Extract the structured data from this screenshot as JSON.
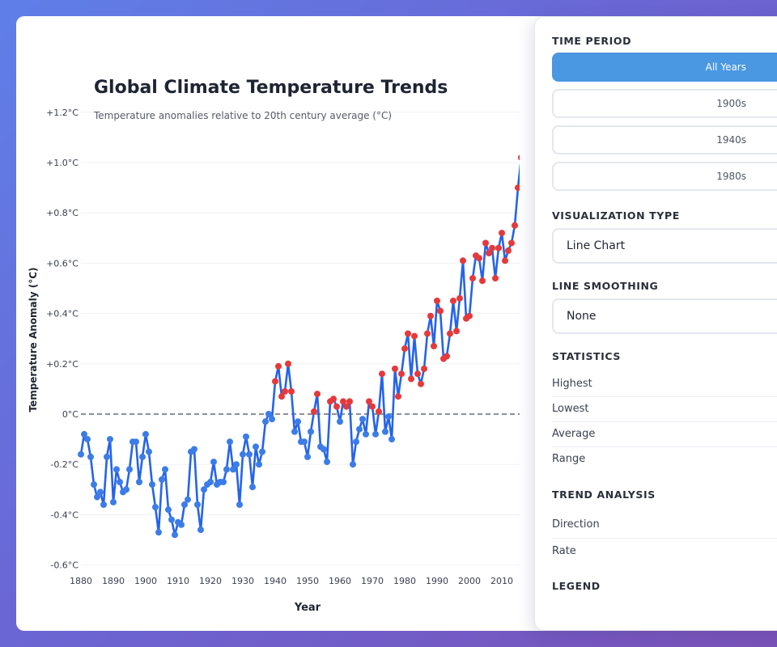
{
  "chart_data": {
    "type": "line",
    "title": "Global Climate Temperature Trends",
    "subtitle": "Temperature anomalies relative to 20th century average (°C)",
    "xlabel": "Year",
    "ylabel": "Temperature Anomaly (°C)",
    "ylim": [
      -0.6,
      1.2
    ],
    "xlim": [
      1880,
      2015
    ],
    "x_ticks": [
      1880,
      1890,
      1900,
      1910,
      1920,
      1930,
      1940,
      1950,
      1960,
      1970,
      1980,
      1990,
      2000,
      2010
    ],
    "x_tick_labels": [
      "1880",
      "1890",
      "1900",
      "1910",
      "1920",
      "1930",
      "1940",
      "1950",
      "1960",
      "1970",
      "1980",
      "1990",
      "2000",
      "2010"
    ],
    "y_ticks": [
      -0.6,
      -0.4,
      -0.2,
      0,
      0.2,
      0.4,
      0.6,
      0.8,
      1.0,
      1.2
    ],
    "y_tick_labels": [
      "-0.6°C",
      "-0.4°C",
      "-0.2°C",
      "0°C",
      "+0.2°C",
      "+0.4°C",
      "+0.6°C",
      "+0.8°C",
      "+1.0°C",
      "+1.2°C"
    ],
    "reference_line": 0,
    "series": [
      {
        "name": "Temperature Anomaly",
        "x_start": 1880,
        "values": [
          -0.16,
          -0.08,
          -0.1,
          -0.17,
          -0.28,
          -0.33,
          -0.31,
          -0.36,
          -0.17,
          -0.1,
          -0.35,
          -0.22,
          -0.27,
          -0.31,
          -0.3,
          -0.22,
          -0.11,
          -0.11,
          -0.27,
          -0.17,
          -0.08,
          -0.15,
          -0.28,
          -0.37,
          -0.47,
          -0.26,
          -0.22,
          -0.38,
          -0.42,
          -0.48,
          -0.43,
          -0.44,
          -0.36,
          -0.34,
          -0.15,
          -0.14,
          -0.36,
          -0.46,
          -0.3,
          -0.28,
          -0.27,
          -0.19,
          -0.28,
          -0.27,
          -0.27,
          -0.22,
          -0.11,
          -0.22,
          -0.2,
          -0.36,
          -0.16,
          -0.09,
          -0.16,
          -0.29,
          -0.13,
          -0.2,
          -0.15,
          -0.03,
          0.0,
          -0.02,
          0.13,
          0.19,
          0.07,
          0.09,
          0.2,
          0.09,
          -0.07,
          -0.03,
          -0.11,
          -0.11,
          -0.17,
          -0.07,
          0.01,
          0.08,
          -0.13,
          -0.14,
          -0.19,
          0.05,
          0.06,
          0.03,
          -0.03,
          0.05,
          0.03,
          0.05,
          -0.2,
          -0.11,
          -0.06,
          -0.02,
          -0.08,
          0.05,
          0.03,
          -0.08,
          0.01,
          0.16,
          -0.07,
          -0.01,
          -0.1,
          0.18,
          0.07,
          0.16,
          0.26,
          0.32,
          0.14,
          0.31,
          0.16,
          0.12,
          0.18,
          0.32,
          0.39,
          0.27,
          0.45,
          0.41,
          0.22,
          0.23,
          0.32,
          0.45,
          0.33,
          0.46,
          0.61,
          0.38,
          0.39,
          0.54,
          0.63,
          0.62,
          0.53,
          0.68,
          0.64,
          0.66,
          0.54,
          0.66,
          0.72,
          0.61,
          0.65,
          0.68,
          0.75,
          0.9,
          1.02
        ],
        "color_above_zero": "#e5393b",
        "color_below_zero": "#3b7ce8",
        "line_color": "#2563eb"
      }
    ]
  },
  "panel": {
    "time_period": {
      "heading": "TIME PERIOD",
      "options": [
        "All Years",
        "1900s",
        "1940s",
        "1980s"
      ],
      "selected": "All Years"
    },
    "visualization": {
      "heading": "VISUALIZATION TYPE",
      "value": "Line Chart"
    },
    "smoothing": {
      "heading": "LINE SMOOTHING",
      "value": "None"
    },
    "statistics": {
      "heading": "STATISTICS",
      "rows": [
        "Highest",
        "Lowest",
        "Average",
        "Range"
      ]
    },
    "trend": {
      "heading": "TREND ANALYSIS",
      "rows": [
        "Direction",
        "Rate"
      ]
    },
    "legend": {
      "heading": "LEGEND"
    }
  },
  "colors": {
    "accent": "#4a97e2",
    "axis_text": "#3b4050",
    "zero_line": "#8a8f99",
    "grid": "#f0f1f4"
  }
}
